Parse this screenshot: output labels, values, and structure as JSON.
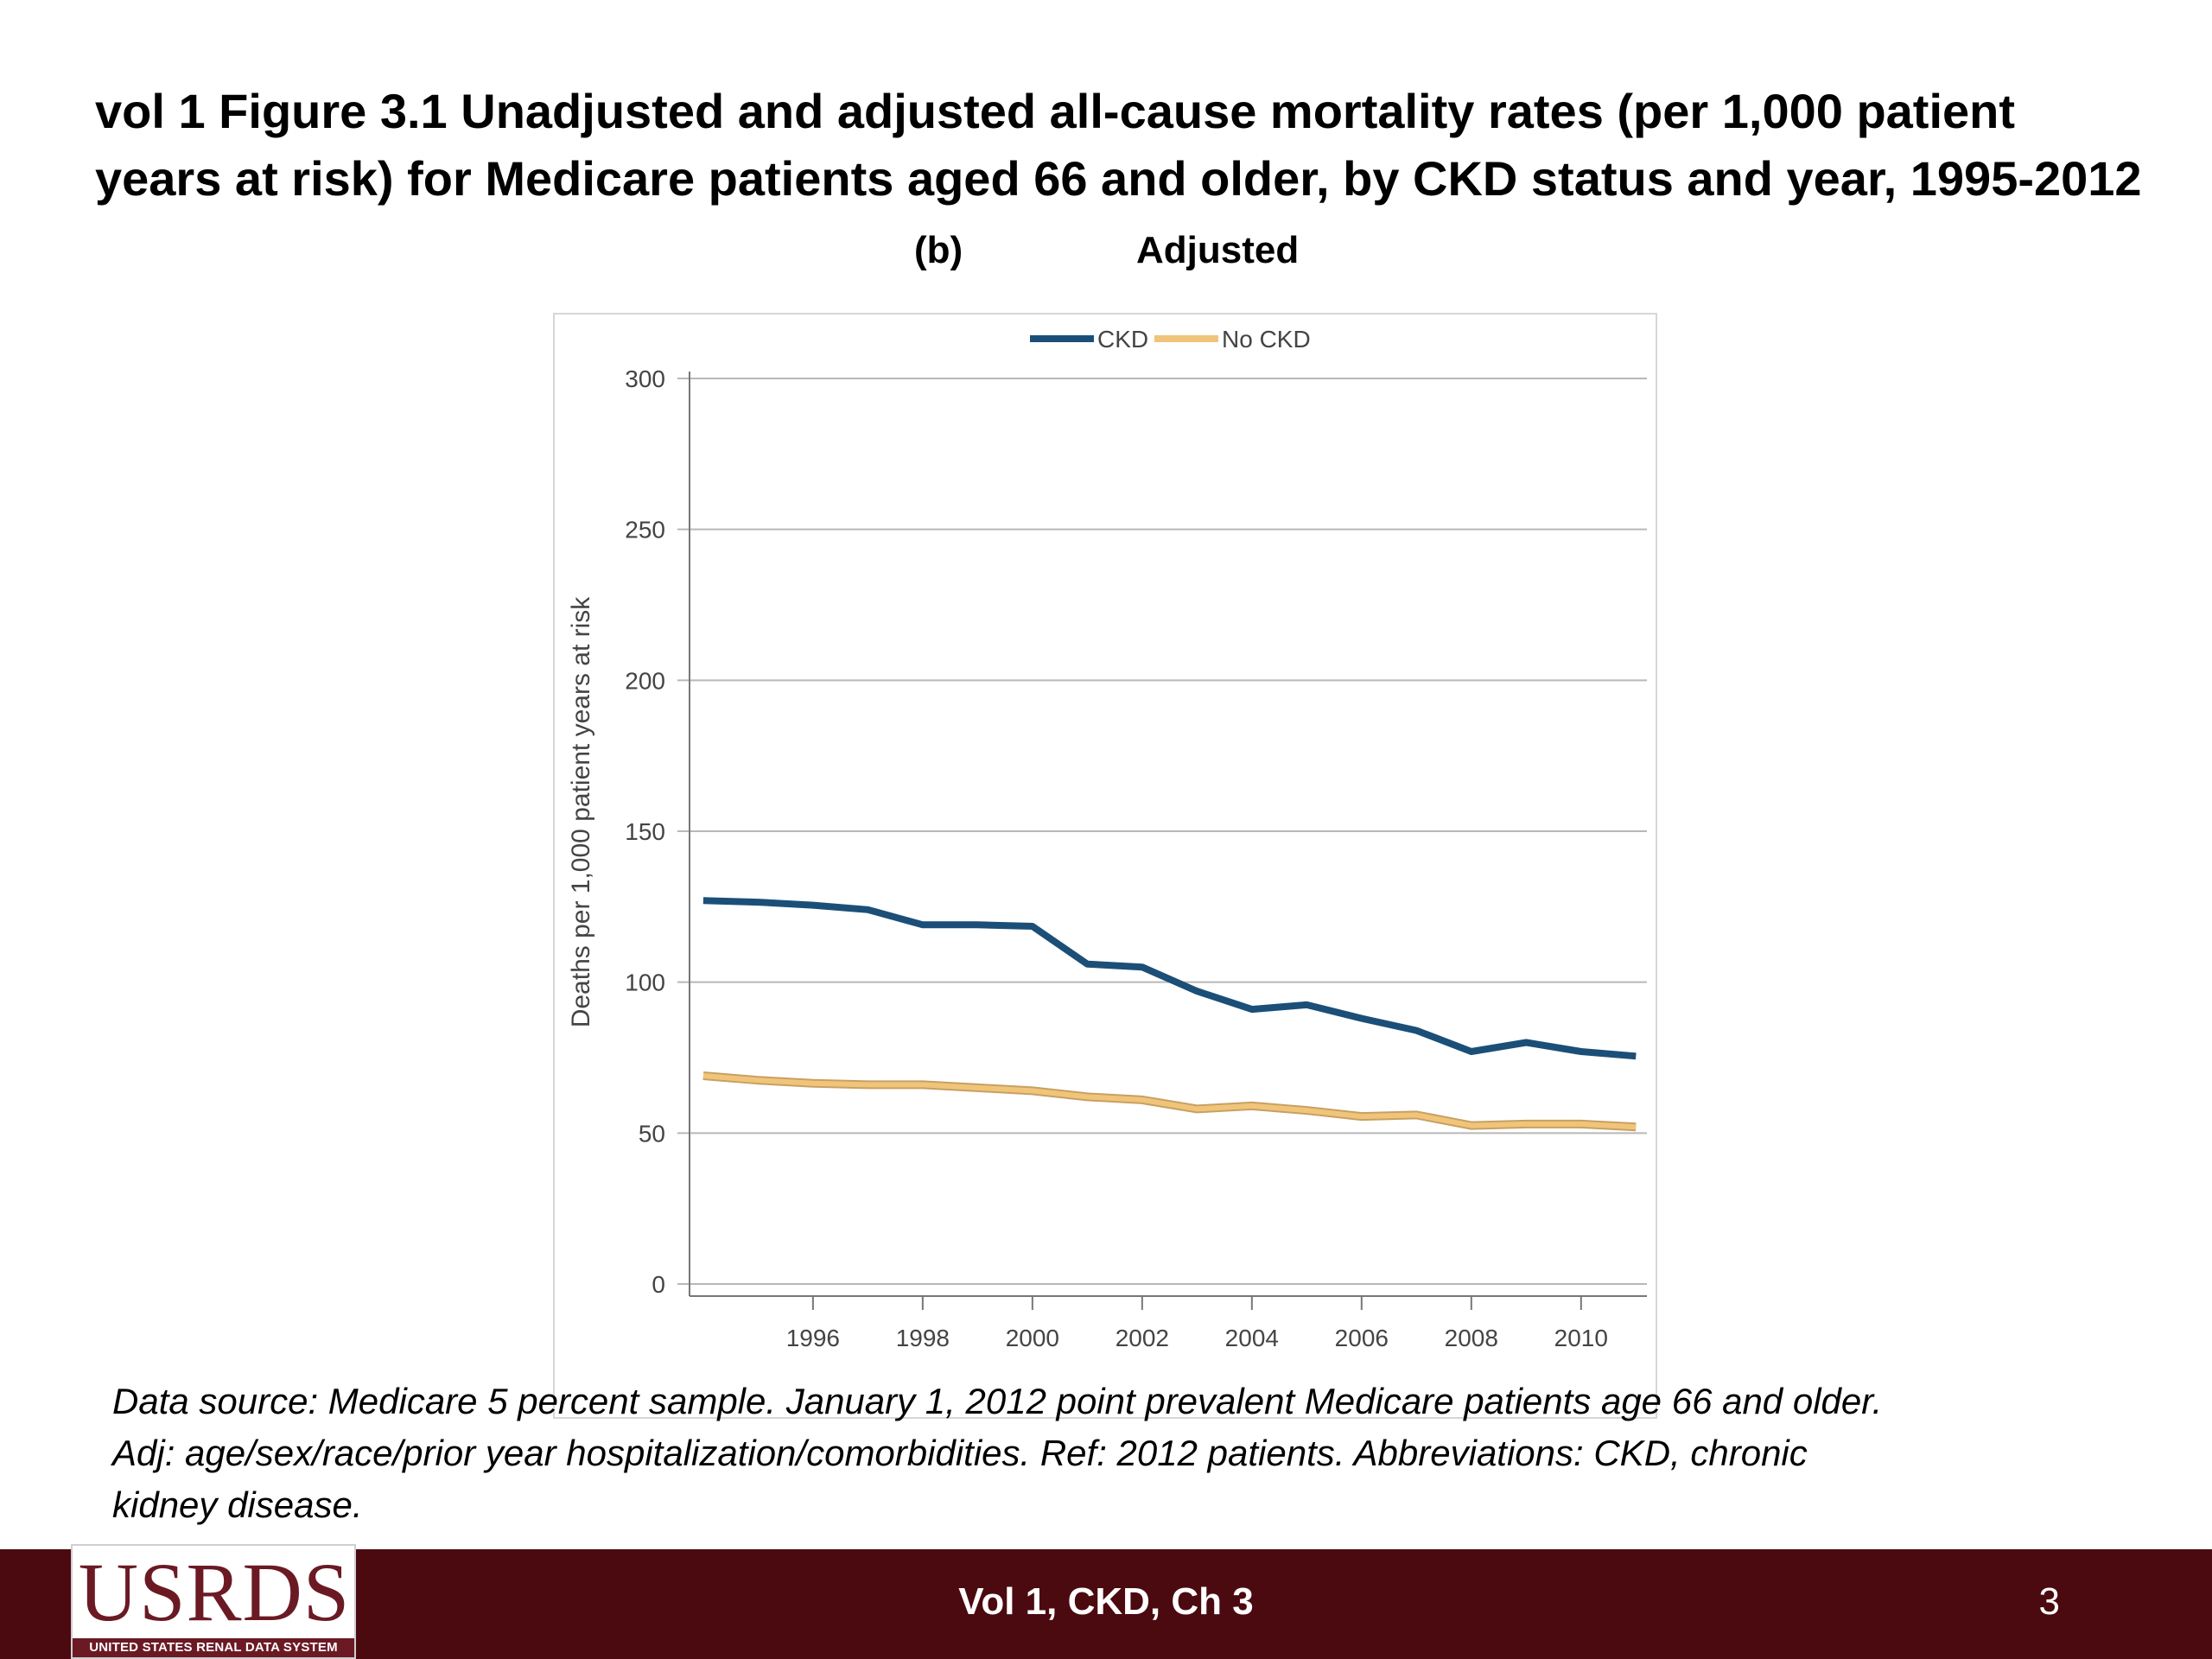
{
  "slide": {
    "title_line1": "vol 1 Figure 3.1  Unadjusted and adjusted all-cause mortality rates (per 1,000 patient",
    "title_line2": "years at risk) for Medicare patients aged 66 and older, by CKD status and year, 1995-2012",
    "panel_letter": "(b)",
    "panel_label": "Adjusted",
    "caption_line1": "Data source: Medicare 5 percent sample. January 1, 2012 point prevalent Medicare patients age 66 and older.",
    "caption_line2": "Adj: age/sex/race/prior year hospitalization/comorbidities. Ref: 2012 patients. Abbreviations: CKD, chronic",
    "caption_line3": "kidney disease.",
    "footer_label": "Vol 1, CKD, Ch 3",
    "page_number": "3",
    "logo_text": "USRDS",
    "logo_tagline": "UNITED STATES RENAL DATA SYSTEM"
  },
  "chart_data": {
    "type": "line",
    "title": "",
    "xlabel": "",
    "ylabel": "Deaths per 1,000 patient years at risk",
    "x": [
      1994,
      1995,
      1996,
      1997,
      1998,
      1999,
      2000,
      2001,
      2002,
      2003,
      2004,
      2005,
      2006,
      2007,
      2008,
      2009,
      2010,
      2011
    ],
    "x_ticks": [
      "1996",
      "1998",
      "2000",
      "2002",
      "2004",
      "2006",
      "2008",
      "2010"
    ],
    "xlim": [
      1993.75,
      2011.2
    ],
    "ylim": [
      0,
      300
    ],
    "y_ticks": [
      "0",
      "50",
      "100",
      "150",
      "200",
      "250",
      "300"
    ],
    "grid": "horizontal",
    "legend_position": "top-center",
    "series": [
      {
        "name": "CKD",
        "color": "#1b4f78",
        "values": [
          127,
          126.5,
          125.5,
          124,
          119,
          119,
          118.5,
          106,
          105,
          97,
          91,
          92.5,
          88,
          84,
          77,
          80,
          77,
          75.5
        ]
      },
      {
        "name": "No CKD",
        "color": "#f0c57a",
        "values": [
          69,
          67.5,
          66.5,
          66,
          66,
          65,
          64,
          62,
          61,
          58,
          59,
          57.5,
          55.5,
          56,
          52.5,
          53,
          53,
          52
        ]
      }
    ]
  }
}
